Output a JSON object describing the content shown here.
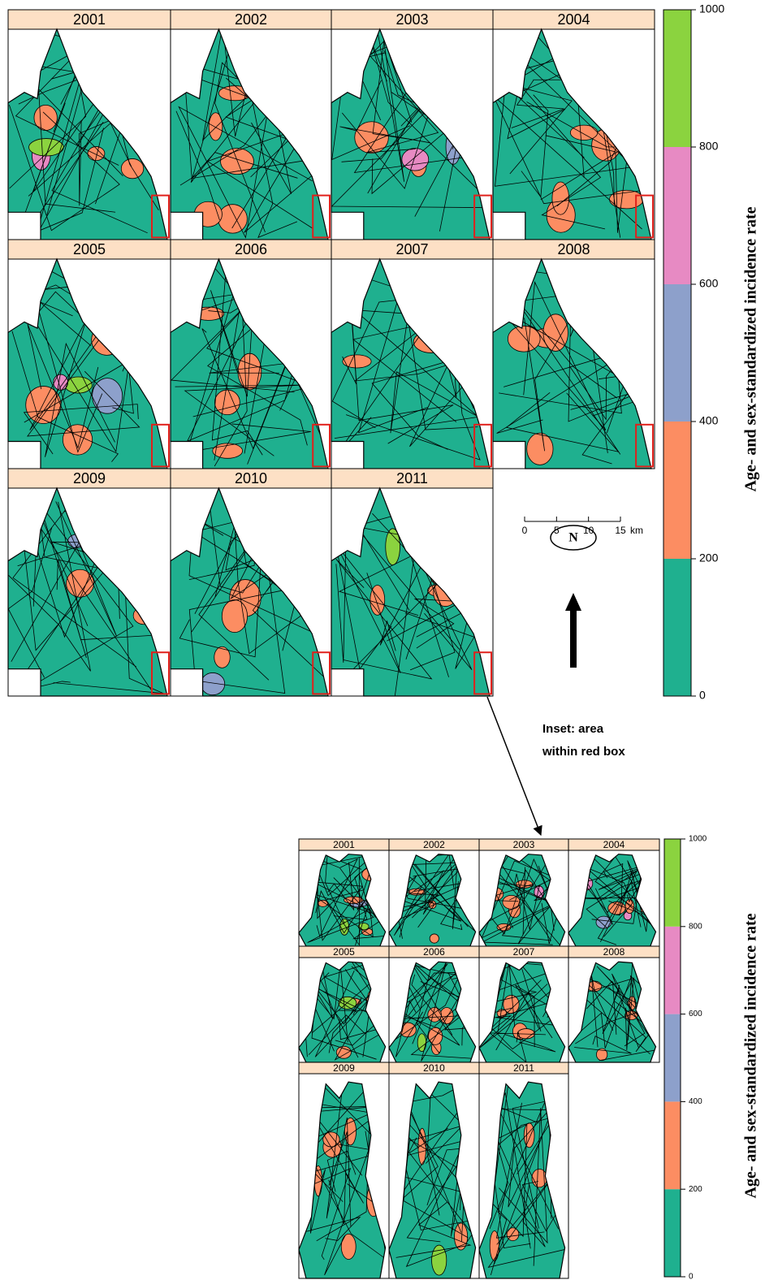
{
  "main_figure": {
    "panels": [
      "2001",
      "2002",
      "2003",
      "2004",
      "2005",
      "2006",
      "2007",
      "2008",
      "2009",
      "2010",
      "2011"
    ],
    "legend": {
      "title": "Age- and sex-standardized incidence rate",
      "ticks": [
        0,
        200,
        400,
        600,
        800,
        1000
      ],
      "colors": [
        "#1fb08f",
        "#fc8d62",
        "#8da0cb",
        "#e78ac3",
        "#8bd33f"
      ]
    },
    "scale_bar": {
      "ticks": [
        0,
        5,
        10,
        15
      ],
      "unit": "km"
    },
    "north": "N"
  },
  "annotation": [
    "Inset: area",
    "within red box"
  ],
  "inset_figure": {
    "panels": [
      "2001",
      "2002",
      "2003",
      "2004",
      "2005",
      "2006",
      "2007",
      "2008",
      "2009",
      "2010",
      "2011"
    ],
    "legend": {
      "title": "Age- and sex-standardized incidence rate",
      "ticks": [
        0,
        200,
        400,
        600,
        800,
        1000
      ],
      "colors": [
        "#1fb08f",
        "#fc8d62",
        "#8da0cb",
        "#e78ac3",
        "#8bd33f"
      ]
    }
  }
}
